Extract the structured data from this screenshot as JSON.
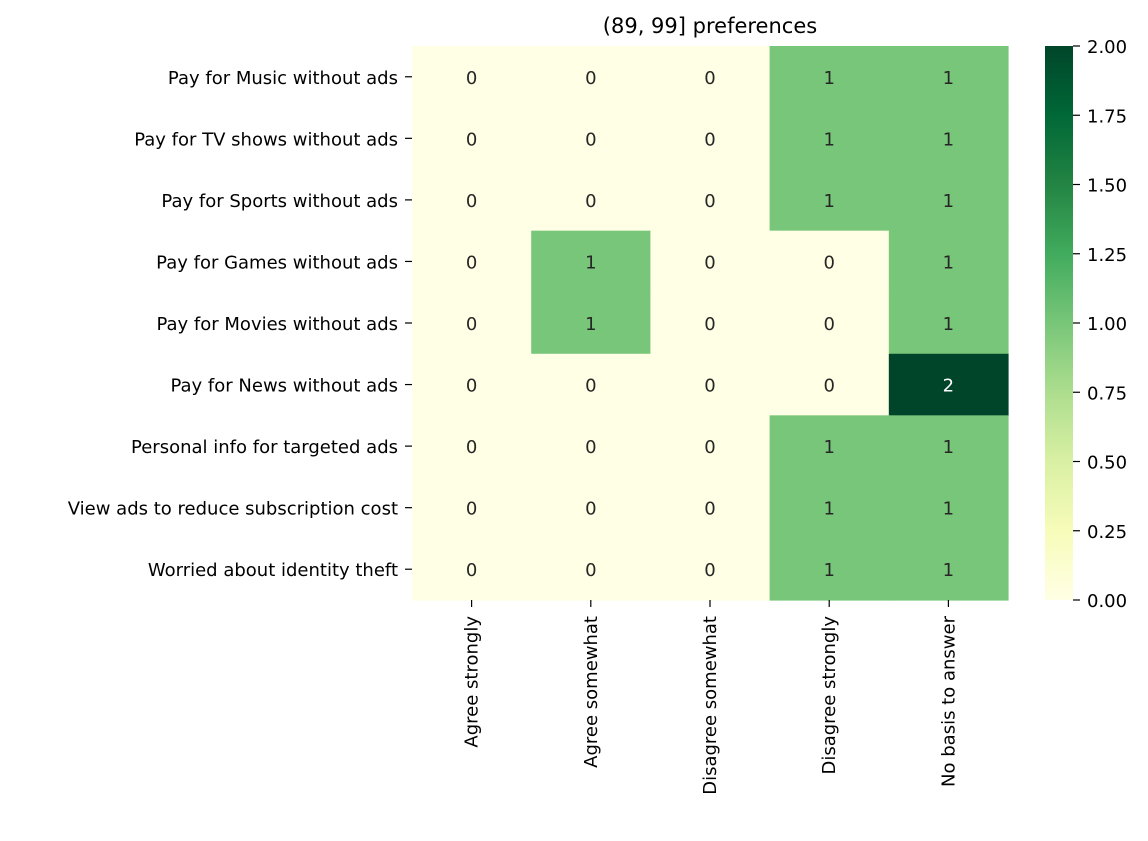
{
  "chart_data": {
    "type": "heatmap",
    "title": "(89, 99] preferences",
    "xlabel": "",
    "ylabel": "",
    "rows": [
      "Pay for Music without ads",
      "Pay for TV shows without ads",
      "Pay for Sports without ads",
      "Pay for Games without ads",
      "Pay for Movies without ads",
      "Pay for News without ads",
      "Personal info for targeted ads",
      "View ads to reduce subscription cost",
      "Worried about identity theft"
    ],
    "columns": [
      "Agree strongly",
      "Agree somewhat",
      "Disagree somewhat",
      "Disagree strongly",
      "No basis to answer"
    ],
    "values": [
      [
        0,
        0,
        0,
        1,
        1
      ],
      [
        0,
        0,
        0,
        1,
        1
      ],
      [
        0,
        0,
        0,
        1,
        1
      ],
      [
        0,
        1,
        0,
        0,
        1
      ],
      [
        0,
        1,
        0,
        0,
        1
      ],
      [
        0,
        0,
        0,
        0,
        2
      ],
      [
        0,
        0,
        0,
        1,
        1
      ],
      [
        0,
        0,
        0,
        1,
        1
      ],
      [
        0,
        0,
        0,
        1,
        1
      ]
    ],
    "colorbar": {
      "range": [
        0,
        2
      ],
      "ticks": [
        "0.00",
        "0.25",
        "0.50",
        "0.75",
        "1.00",
        "1.25",
        "1.50",
        "1.75",
        "2.00"
      ],
      "colormap": "YlGn",
      "stops": [
        "#ffffe5",
        "#f7fcb9",
        "#d9f0a3",
        "#addd8e",
        "#78c679",
        "#41ab5d",
        "#238443",
        "#006837",
        "#004529"
      ]
    },
    "annotation_colors": {
      "dark_text": "#262626",
      "light_text": "#ffffff"
    },
    "grid": false,
    "legend": "colorbar-right"
  }
}
